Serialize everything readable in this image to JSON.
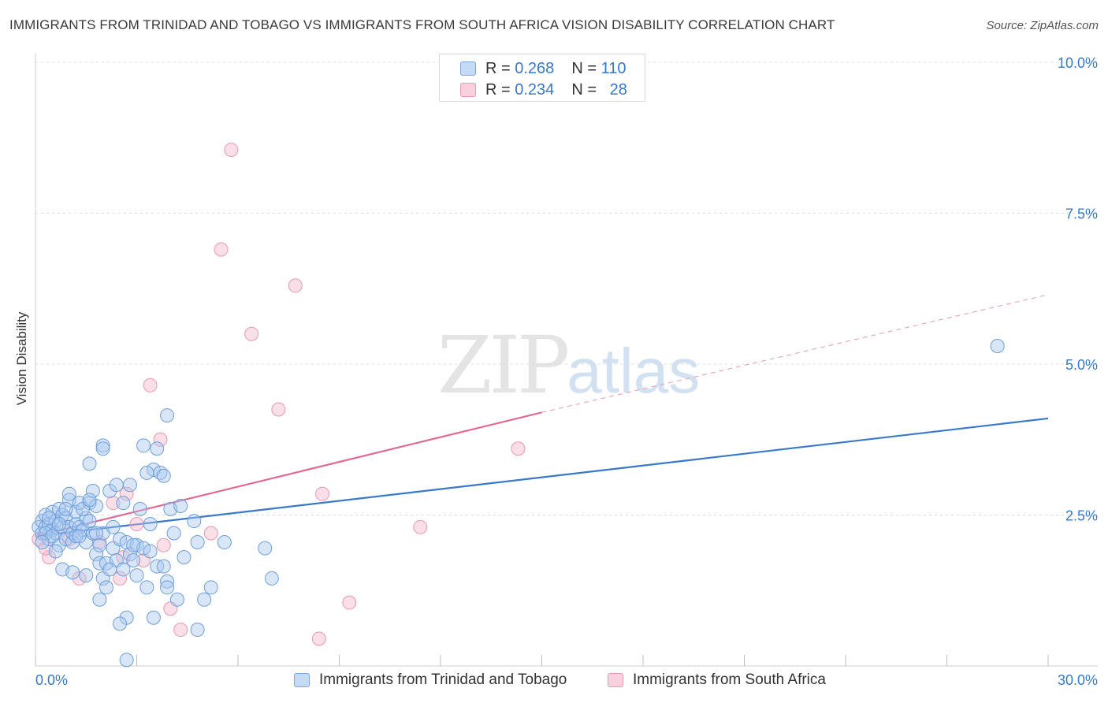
{
  "title": "IMMIGRANTS FROM TRINIDAD AND TOBAGO VS IMMIGRANTS FROM SOUTH AFRICA VISION DISABILITY CORRELATION CHART",
  "source": "Source: ZipAtlas.com",
  "watermark": {
    "zip": "ZIP",
    "atlas": "atlas"
  },
  "legend": {
    "rows": [
      {
        "r_label": "R =",
        "r_value": "0.268",
        "n_label": "N =",
        "n_value": "110",
        "color": "#a9c8ef"
      },
      {
        "r_label": "R =",
        "r_value": "0.234",
        "n_label": "N =",
        "n_value": "28",
        "color": "#f5b8cb"
      }
    ]
  },
  "bottom_legend": {
    "series1": "Immigrants from Trinidad and Tobago",
    "series2": "Immigrants from South Africa"
  },
  "chart_data": {
    "type": "scatter",
    "title": "IMMIGRANTS FROM TRINIDAD AND TOBAGO VS IMMIGRANTS FROM SOUTH AFRICA VISION DISABILITY CORRELATION CHART",
    "xlabel": "",
    "ylabel": "Vision Disability",
    "xlim": [
      0,
      30
    ],
    "ylim": [
      0,
      10
    ],
    "x_tick_labels": [
      "0.0%",
      "30.0%"
    ],
    "y_ticks": [
      2.5,
      5.0,
      7.5,
      10.0
    ],
    "y_tick_labels": [
      "2.5%",
      "5.0%",
      "7.5%",
      "10.0%"
    ],
    "grid": true,
    "legend_position": "top-center",
    "colors": {
      "blue": "#3a78c9",
      "blue_fill": "#a9c8ef",
      "pink": "#e06b93",
      "pink_fill": "#f5b8cb"
    },
    "series": [
      {
        "name": "Immigrants from Trinidad and Tobago",
        "color": "#3a78c9",
        "trend": {
          "x": [
            0,
            30
          ],
          "y": [
            2.15,
            4.1
          ]
        },
        "points": [
          [
            0.1,
            2.3
          ],
          [
            0.2,
            2.2
          ],
          [
            0.2,
            2.4
          ],
          [
            0.3,
            2.5
          ],
          [
            0.3,
            2.3
          ],
          [
            0.4,
            2.1
          ],
          [
            0.4,
            2.35
          ],
          [
            0.5,
            2.55
          ],
          [
            0.5,
            2.25
          ],
          [
            0.6,
            2.4
          ],
          [
            0.6,
            2.2
          ],
          [
            0.7,
            2.6
          ],
          [
            0.7,
            2.0
          ],
          [
            0.8,
            2.3
          ],
          [
            0.8,
            2.5
          ],
          [
            0.9,
            2.45
          ],
          [
            0.9,
            2.1
          ],
          [
            1.0,
            2.3
          ],
          [
            1.0,
            2.75
          ],
          [
            1.1,
            2.2
          ],
          [
            1.1,
            2.05
          ],
          [
            1.2,
            2.35
          ],
          [
            1.2,
            2.55
          ],
          [
            1.3,
            2.3
          ],
          [
            1.3,
            2.7
          ],
          [
            1.4,
            2.25
          ],
          [
            1.5,
            2.45
          ],
          [
            1.5,
            2.05
          ],
          [
            1.6,
            2.7
          ],
          [
            1.7,
            2.2
          ],
          [
            1.7,
            2.9
          ],
          [
            1.8,
            1.85
          ],
          [
            1.8,
            2.65
          ],
          [
            1.9,
            2.0
          ],
          [
            1.9,
            1.7
          ],
          [
            2.0,
            2.2
          ],
          [
            2.0,
            1.45
          ],
          [
            2.1,
            1.7
          ],
          [
            2.1,
            1.3
          ],
          [
            2.2,
            2.9
          ],
          [
            2.3,
            1.95
          ],
          [
            2.3,
            2.3
          ],
          [
            2.4,
            1.75
          ],
          [
            2.5,
            2.1
          ],
          [
            2.6,
            1.6
          ],
          [
            2.6,
            2.7
          ],
          [
            2.7,
            2.05
          ],
          [
            2.8,
            1.85
          ],
          [
            2.8,
            3.0
          ],
          [
            2.9,
            1.75
          ],
          [
            3.0,
            2.0
          ],
          [
            3.0,
            1.5
          ],
          [
            3.1,
            2.6
          ],
          [
            3.2,
            1.95
          ],
          [
            3.3,
            1.3
          ],
          [
            3.4,
            2.35
          ],
          [
            3.5,
            3.25
          ],
          [
            3.5,
            0.8
          ],
          [
            3.6,
            1.65
          ],
          [
            3.7,
            3.2
          ],
          [
            3.8,
            1.65
          ],
          [
            3.9,
            1.4
          ],
          [
            3.9,
            1.3
          ],
          [
            4.0,
            2.6
          ],
          [
            4.1,
            2.2
          ],
          [
            4.2,
            1.1
          ],
          [
            4.3,
            2.65
          ],
          [
            4.4,
            1.8
          ],
          [
            4.7,
            2.4
          ],
          [
            4.8,
            2.05
          ],
          [
            5.0,
            1.1
          ],
          [
            5.2,
            1.3
          ],
          [
            5.6,
            2.05
          ],
          [
            6.8,
            1.95
          ],
          [
            7.0,
            1.45
          ],
          [
            0.3,
            2.2
          ],
          [
            0.5,
            2.15
          ],
          [
            0.6,
            1.9
          ],
          [
            0.8,
            1.6
          ],
          [
            1.0,
            2.85
          ],
          [
            1.2,
            2.15
          ],
          [
            1.4,
            2.6
          ],
          [
            1.6,
            3.35
          ],
          [
            1.6,
            2.75
          ],
          [
            2.0,
            3.65
          ],
          [
            2.0,
            3.6
          ],
          [
            2.4,
            3.0
          ],
          [
            3.2,
            3.65
          ],
          [
            3.3,
            3.2
          ],
          [
            3.6,
            3.6
          ],
          [
            3.8,
            3.15
          ],
          [
            3.9,
            4.15
          ],
          [
            2.7,
            0.1
          ],
          [
            2.7,
            0.8
          ],
          [
            4.8,
            0.6
          ],
          [
            1.9,
            1.1
          ],
          [
            2.5,
            0.7
          ],
          [
            1.1,
            1.55
          ],
          [
            1.5,
            1.5
          ],
          [
            0.4,
            2.45
          ],
          [
            0.2,
            2.05
          ],
          [
            0.7,
            2.35
          ],
          [
            1.3,
            2.15
          ],
          [
            1.8,
            2.2
          ],
          [
            2.2,
            1.6
          ],
          [
            2.9,
            2.0
          ],
          [
            3.4,
            1.9
          ],
          [
            0.9,
            2.6
          ],
          [
            1.6,
            2.4
          ],
          [
            28.5,
            5.3
          ]
        ]
      },
      {
        "name": "Immigrants from South Africa",
        "color": "#e06b93",
        "trend": {
          "x": [
            0,
            15
          ],
          "y": [
            2.15,
            4.2
          ]
        },
        "trend_extension": {
          "x": [
            15,
            30
          ],
          "y": [
            4.2,
            6.15
          ]
        },
        "points": [
          [
            0.1,
            2.1
          ],
          [
            0.4,
            1.8
          ],
          [
            1.0,
            2.1
          ],
          [
            1.3,
            1.45
          ],
          [
            1.9,
            2.05
          ],
          [
            2.5,
            1.45
          ],
          [
            2.6,
            1.8
          ],
          [
            2.7,
            2.85
          ],
          [
            3.0,
            2.35
          ],
          [
            3.2,
            1.75
          ],
          [
            3.4,
            4.65
          ],
          [
            3.7,
            3.75
          ],
          [
            3.8,
            2.0
          ],
          [
            4.0,
            0.95
          ],
          [
            4.3,
            0.6
          ],
          [
            5.2,
            2.2
          ],
          [
            5.8,
            8.55
          ],
          [
            5.5,
            6.9
          ],
          [
            6.4,
            5.5
          ],
          [
            7.2,
            4.25
          ],
          [
            7.7,
            6.3
          ],
          [
            8.5,
            2.85
          ],
          [
            8.4,
            0.45
          ],
          [
            9.3,
            1.05
          ],
          [
            11.4,
            2.3
          ],
          [
            14.3,
            3.6
          ],
          [
            0.3,
            1.95
          ],
          [
            2.3,
            2.7
          ]
        ]
      }
    ]
  }
}
